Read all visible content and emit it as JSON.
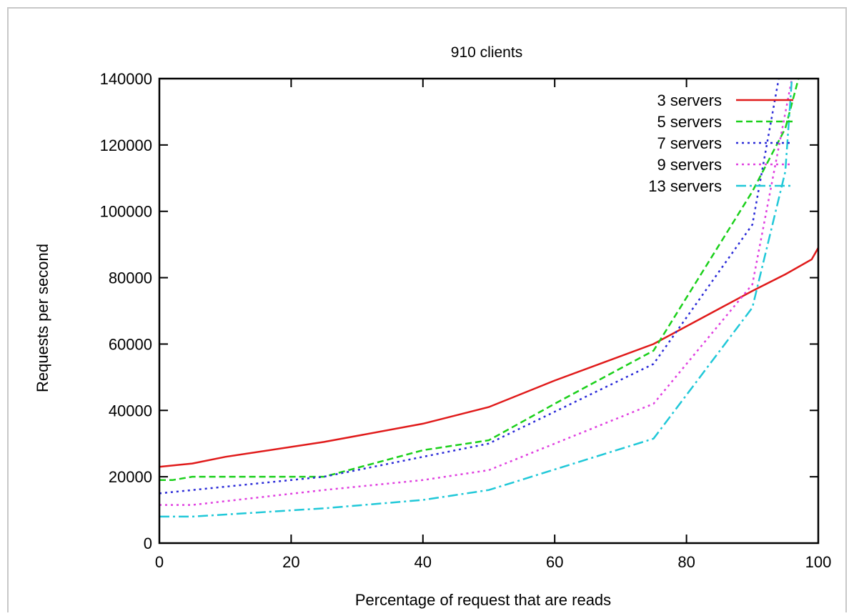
{
  "chart_data": {
    "type": "line",
    "title": "910 clients",
    "xlabel": "Percentage of request that are reads",
    "ylabel": "Requests per second",
    "xlim": [
      0,
      100
    ],
    "ylim": [
      0,
      140000
    ],
    "x_ticks": [
      0,
      20,
      40,
      60,
      80,
      100
    ],
    "y_ticks": [
      0,
      20000,
      40000,
      60000,
      80000,
      100000,
      120000,
      140000
    ],
    "grid": false,
    "legend_position": "top-right",
    "series": [
      {
        "name": "3 servers",
        "color": "#e01a1a",
        "dash": "solid",
        "x": [
          0,
          5,
          10,
          25,
          40,
          50,
          60,
          75,
          90,
          95,
          99,
          100
        ],
        "y": [
          23000,
          24000,
          26000,
          30500,
          36000,
          41000,
          49000,
          60000,
          76000,
          81000,
          85500,
          89000
        ]
      },
      {
        "name": "5 servers",
        "color": "#1bd01b",
        "dash": "dashed",
        "x": [
          0,
          2,
          5,
          25,
          40,
          50,
          60,
          75,
          90,
          95,
          97
        ],
        "y": [
          19000,
          19000,
          20000,
          20000,
          28000,
          31000,
          42000,
          58000,
          106000,
          125000,
          140000
        ]
      },
      {
        "name": "7 servers",
        "color": "#2b2bd8",
        "dash": "dotted",
        "x": [
          0,
          25,
          50,
          75,
          90,
          94
        ],
        "y": [
          15000,
          20000,
          30000,
          54000,
          96000,
          140000
        ]
      },
      {
        "name": "9 servers",
        "color": "#e040e0",
        "dash": "dotted",
        "x": [
          0,
          5,
          25,
          40,
          50,
          75,
          90,
          96
        ],
        "y": [
          11500,
          11500,
          16000,
          19000,
          22000,
          42000,
          78000,
          140000
        ]
      },
      {
        "name": "13 servers",
        "color": "#20c8d8",
        "dash": "dashdot",
        "x": [
          0,
          5,
          25,
          40,
          50,
          75,
          90,
          95,
          96
        ],
        "y": [
          8000,
          8000,
          10500,
          13000,
          16000,
          31500,
          71000,
          112000,
          140000
        ]
      }
    ]
  }
}
